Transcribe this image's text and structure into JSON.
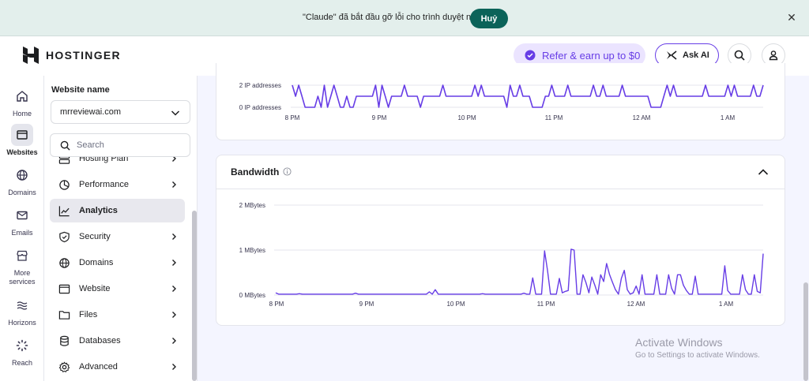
{
  "debug_banner": {
    "message": "\"Claude\" đã bắt đầu gỡ lỗi cho trình duyệt này",
    "cancel_label": "Huỷ"
  },
  "header": {
    "brand": "HOSTINGER",
    "refer_label": "Refer & earn up to $0",
    "ask_ai_label": "Ask AI"
  },
  "rail": {
    "items": [
      {
        "label": "Home",
        "icon": "home-icon"
      },
      {
        "label": "Websites",
        "icon": "websites-icon"
      },
      {
        "label": "Domains",
        "icon": "globe-icon"
      },
      {
        "label": "Emails",
        "icon": "mail-icon"
      },
      {
        "label": "More services",
        "icon": "store-icon"
      },
      {
        "label": "Horizons",
        "icon": "horizons-icon"
      },
      {
        "label": "Reach",
        "icon": "reach-icon"
      }
    ],
    "active": "Websites"
  },
  "sidebar": {
    "website_name_label": "Website name",
    "selected_website": "mrreviewai.com",
    "search_placeholder": "Search",
    "items": [
      {
        "label": "Hosting Plan",
        "icon": "server-icon"
      },
      {
        "label": "Performance",
        "icon": "pie-chart-icon"
      },
      {
        "label": "Analytics",
        "icon": "trend-icon"
      },
      {
        "label": "Security",
        "icon": "shield-icon"
      },
      {
        "label": "Domains",
        "icon": "globe-icon"
      },
      {
        "label": "Website",
        "icon": "browser-icon"
      },
      {
        "label": "Files",
        "icon": "folder-icon"
      },
      {
        "label": "Databases",
        "icon": "database-icon"
      },
      {
        "label": "Advanced",
        "icon": "gear-icon"
      }
    ],
    "active": "Analytics"
  },
  "ip_chart": {
    "y_labels": [
      "2 IP addresses",
      "0 IP addresses"
    ],
    "x_labels": [
      "8 PM",
      "9 PM",
      "10 PM",
      "11 PM",
      "12 AM",
      "1 AM"
    ]
  },
  "bandwidth": {
    "title": "Bandwidth"
  },
  "chart_data": [
    {
      "type": "line",
      "title": "",
      "unit": "IP addresses",
      "x_ticks": [
        "8 PM",
        "9 PM",
        "10 PM",
        "11 PM",
        "12 AM",
        "1 AM"
      ],
      "ylim": [
        0,
        2
      ],
      "y_ticks": [
        0,
        2
      ],
      "grid": true,
      "series": [
        {
          "color": "#673de6",
          "values": [
            2,
            1,
            2,
            1,
            0,
            0,
            0,
            0,
            1,
            0,
            2,
            0,
            1,
            2,
            1,
            0,
            0,
            1,
            0,
            0,
            1,
            1,
            1,
            1,
            1,
            1,
            2,
            0,
            2,
            1,
            0,
            1,
            1,
            1,
            1,
            2,
            1,
            1,
            1,
            1,
            0,
            1,
            1,
            1,
            1,
            1,
            1,
            2,
            1,
            1,
            1,
            1,
            1,
            1,
            1,
            1,
            1,
            2,
            1,
            2,
            1,
            1,
            1,
            1,
            1,
            1,
            1,
            0,
            2,
            1,
            1,
            2,
            1,
            1,
            1,
            0,
            0,
            0,
            0,
            1,
            1,
            2,
            1,
            1,
            1,
            1,
            2,
            1,
            1,
            1,
            1,
            1,
            1,
            1,
            2,
            1,
            1,
            2,
            1,
            1,
            1,
            1,
            1,
            2,
            1,
            1,
            1,
            1,
            1,
            1,
            1,
            1,
            0,
            0,
            0,
            0,
            1,
            2,
            1,
            2,
            1,
            1,
            1,
            1,
            1,
            1,
            1,
            1,
            1,
            2,
            1,
            1,
            1,
            1,
            1,
            1,
            2,
            1,
            2,
            1,
            1,
            1,
            1,
            1,
            2,
            1,
            1,
            2
          ]
        }
      ]
    },
    {
      "type": "line",
      "title": "Bandwidth",
      "unit": "MBytes",
      "x_ticks": [
        "8 PM",
        "9 PM",
        "10 PM",
        "11 PM",
        "12 AM",
        "1 AM"
      ],
      "ylim": [
        0,
        2
      ],
      "y_ticks": [
        0,
        1,
        2
      ],
      "y_tick_labels": [
        "0 MBytes",
        "1 MBytes",
        "2 MBytes"
      ],
      "grid": true,
      "series": [
        {
          "color": "#673de6",
          "values": [
            0.05,
            0.02,
            0.02,
            0.02,
            0.02,
            0.02,
            0.02,
            0.02,
            0.03,
            0.02,
            0.02,
            0.02,
            0.02,
            0.02,
            0.02,
            0.02,
            0.02,
            0.02,
            0.02,
            0.02,
            0.02,
            0.02,
            0.02,
            0.02,
            0.02,
            0.02,
            0.02,
            0.04,
            0.02,
            0.02,
            0.02,
            0.02,
            0.02,
            0.02,
            0.02,
            0.02,
            0.02,
            0.02,
            0.02,
            0.02,
            0.02,
            0.02,
            0.02,
            0.02,
            0.02,
            0.02,
            0.02,
            0.02,
            0.02,
            0.02,
            0.02,
            0.02,
            0.07,
            0.02,
            0.12,
            0.02,
            0.02,
            0.02,
            0.02,
            0.02,
            0.02,
            0.02,
            0.02,
            0.02,
            0.02,
            0.02,
            0.02,
            0.02,
            0.02,
            0.02,
            0.03,
            0.02,
            0.02,
            0.02,
            0.02,
            0.02,
            0.02,
            0.02,
            0.02,
            0.02,
            0.02,
            0.02,
            0.02,
            0.02,
            0.04,
            0.02,
            0.02,
            0.38,
            0.02,
            0.02,
            0.02,
            0.98,
            0.55,
            0.02,
            0.02,
            0.02,
            0.37,
            0.05,
            0.08,
            0.1,
            1.02,
            1.0,
            0.02,
            0.02,
            0.45,
            0.28,
            0.05,
            0.4,
            0.22,
            0.02,
            0.45,
            0.3,
            0.7,
            0.45,
            0.28,
            0.12,
            0.02,
            0.37,
            0.55,
            0.12,
            0.02,
            0.05,
            0.2,
            0.02,
            0.45,
            0.02,
            0.02,
            0.02,
            0.02,
            0.45,
            0.02,
            0.02,
            0.02,
            0.45,
            0.15,
            0.02,
            0.45,
            0.45,
            0.22,
            0.1,
            0.02,
            0.02,
            0.42,
            0.02,
            0.02,
            0.02,
            0.02,
            0.02,
            0.02,
            0.02,
            0.02,
            0.02,
            0.65,
            0.1,
            0.02,
            0.02,
            0.02,
            0.02,
            0.45,
            0.12,
            0.02,
            0.02,
            0.45,
            0.08,
            0.05,
            0.92
          ]
        }
      ]
    }
  ],
  "watermark": {
    "title": "Activate Windows",
    "subtitle": "Go to Settings to activate Windows."
  },
  "colors": {
    "accent": "#673de6",
    "debug_button": "#0b6359",
    "page_bg": "#f4f5ff"
  }
}
